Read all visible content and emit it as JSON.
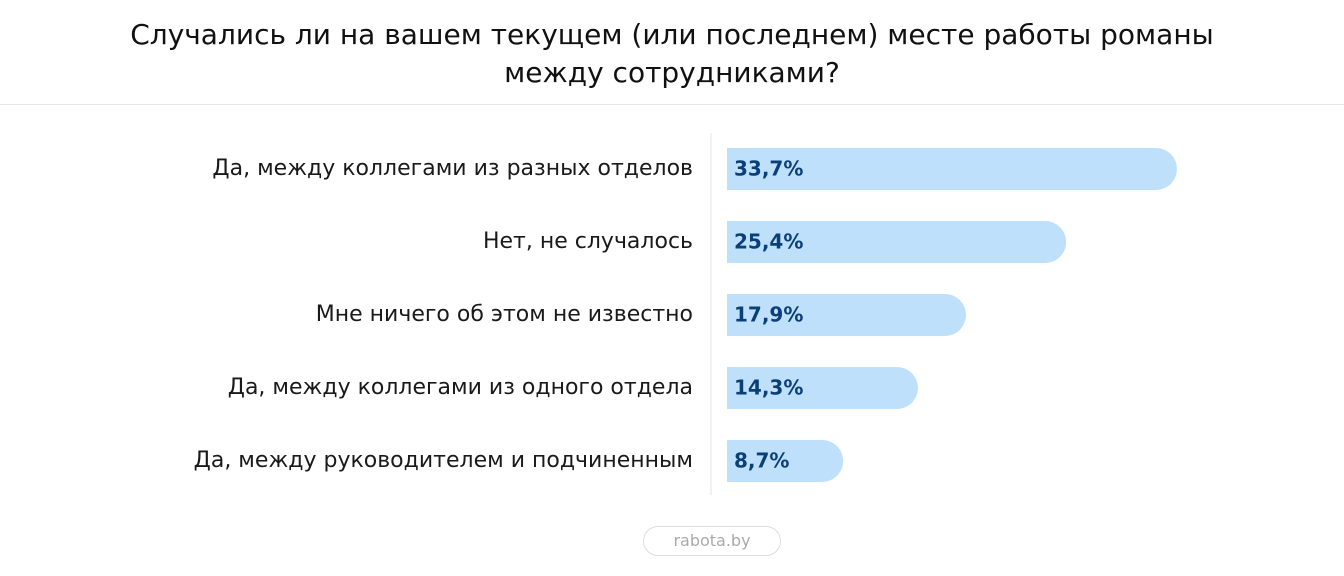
{
  "chart_data": {
    "type": "bar",
    "orientation": "horizontal",
    "title": "Случались ли на вашем текущем (или последнем) месте работы романы между сотрудниками?",
    "categories": [
      "Да, между коллегами из разных отделов",
      "Нет, не случалось",
      "Мне ничего об этом не известно",
      "Да, между коллегами из одного отдела",
      "Да, между руководителем и подчиненным"
    ],
    "values": [
      33.7,
      25.4,
      17.9,
      14.3,
      8.7
    ],
    "value_labels": [
      "33,7%",
      "25,4%",
      "17,9%",
      "14,3%",
      "8,7%"
    ],
    "color": "#bfe0fb",
    "source": "rabota.by"
  }
}
